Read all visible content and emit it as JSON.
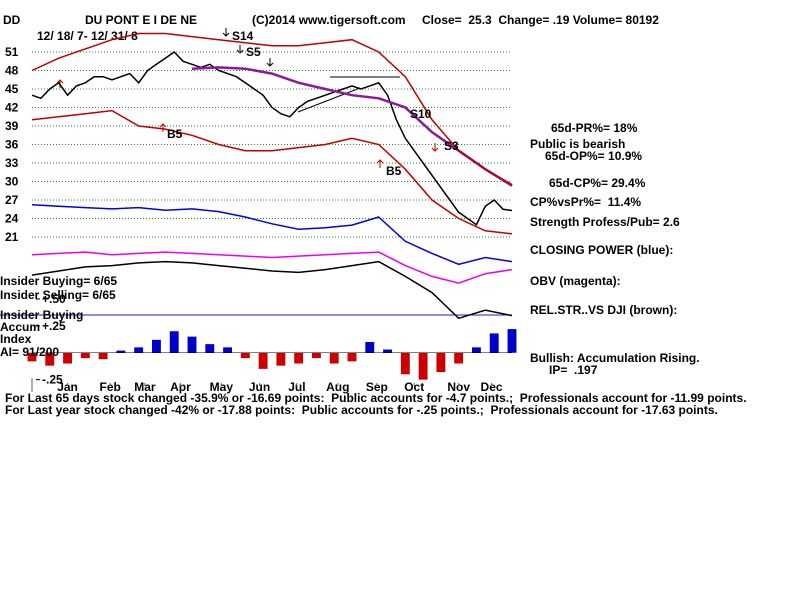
{
  "chart_data": [
    {
      "type": "line",
      "ticker": "DD",
      "title": "DU PONT E I DE NE",
      "subtitle": "12/ 18/ 7- 12/ 31/ 8",
      "copyright": "(C)2014 www.tigersoft.com",
      "quote": "Close=  25.3  Change= .19 Volume= 80192",
      "xlim": [
        0,
        54
      ],
      "ylim": [
        20,
        54
      ],
      "yticks": [
        21,
        24,
        27,
        30,
        33,
        36,
        39,
        42,
        45,
        48,
        51
      ],
      "xticks": [
        {
          "value": 4,
          "label": "Jan"
        },
        {
          "value": 8.8,
          "label": "Feb"
        },
        {
          "value": 12.7,
          "label": "Mar"
        },
        {
          "value": 16.7,
          "label": "Apr"
        },
        {
          "value": 21.3,
          "label": "May"
        },
        {
          "value": 25.6,
          "label": "Jun"
        },
        {
          "value": 29.8,
          "label": "Jul"
        },
        {
          "value": 34.4,
          "label": "Aug"
        },
        {
          "value": 38.8,
          "label": "Sep"
        },
        {
          "value": 43,
          "label": "Oct"
        },
        {
          "value": 48,
          "label": "Nov"
        },
        {
          "value": 51.7,
          "label": "Dec"
        }
      ],
      "grid": true,
      "series": [
        {
          "color": "#000000",
          "x": [
            0,
            1,
            2,
            3,
            4,
            5,
            6,
            7,
            8,
            9,
            10,
            11,
            12,
            13,
            14,
            15,
            16,
            17,
            18,
            19,
            20,
            21,
            22,
            23,
            24,
            25,
            26,
            27,
            28,
            29,
            30,
            31,
            32,
            33,
            34,
            35,
            36,
            37,
            38,
            39,
            40,
            41,
            42,
            43,
            44,
            45,
            46,
            47,
            48,
            49,
            50,
            51,
            52,
            53,
            54
          ],
          "values": [
            44,
            43.5,
            45,
            46,
            44,
            45.5,
            46,
            47,
            47,
            46.5,
            47,
            47.5,
            46,
            48,
            49,
            50,
            51,
            49.5,
            49,
            48.5,
            49,
            48,
            47.5,
            47,
            46,
            45,
            44,
            42,
            41,
            40.5,
            42,
            43,
            43.5,
            44,
            44.5,
            45,
            45.5,
            45,
            45.5,
            46,
            44,
            40,
            37,
            35,
            33,
            31,
            29,
            27,
            25,
            24,
            23,
            26,
            27,
            25.5,
            25.3
          ]
        },
        {
          "color": "#8b1a9b",
          "x": [
            0,
            3,
            6,
            9,
            12,
            15,
            18,
            21,
            24,
            27,
            30,
            33,
            36,
            39,
            42,
            45,
            48,
            51,
            54
          ],
          "values": [
            null,
            null,
            null,
            null,
            null,
            null,
            48.3,
            48.5,
            48.3,
            47.5,
            46,
            45,
            44,
            43.5,
            42,
            38,
            35,
            32,
            29.3
          ]
        },
        {
          "color": "#c00000",
          "x": [
            0,
            3,
            6,
            9,
            12,
            15,
            18,
            21,
            24,
            27,
            30,
            33,
            36,
            39,
            42,
            45,
            48,
            51,
            54
          ],
          "values": [
            48,
            50,
            51.5,
            53,
            54,
            54,
            53.5,
            53,
            52.5,
            52,
            52,
            52.5,
            53,
            51,
            47,
            40,
            35,
            32,
            29.5
          ]
        },
        {
          "color": "#c00000",
          "x": [
            0,
            3,
            6,
            9,
            12,
            15,
            18,
            21,
            24,
            27,
            30,
            33,
            36,
            39,
            42,
            45,
            48,
            51,
            54
          ],
          "values": [
            40,
            40.5,
            41,
            41.5,
            39,
            38.5,
            37.5,
            36,
            35,
            35,
            35.5,
            36,
            37,
            36,
            32,
            27,
            24,
            22,
            21.5
          ]
        }
      ],
      "annotations": [
        "S14",
        "S5",
        "S10",
        "S3",
        "B5",
        "B5"
      ]
    },
    {
      "type": "line",
      "xlim": [
        0,
        54
      ],
      "ylim": [
        0,
        100
      ],
      "series": [
        {
          "color": "#0000ee",
          "x": [
            0,
            3,
            6,
            9,
            12,
            15,
            18,
            21,
            24,
            27,
            30,
            33,
            36,
            39,
            42,
            45,
            48,
            51,
            54
          ],
          "values": [
            89,
            88,
            87,
            86,
            87,
            85,
            86,
            84,
            80,
            75,
            71,
            72,
            74,
            80,
            62,
            53,
            45,
            50,
            47
          ]
        },
        {
          "color": "#ee00ee",
          "x": [
            0,
            3,
            6,
            9,
            12,
            15,
            18,
            21,
            24,
            27,
            30,
            33,
            36,
            39,
            42,
            45,
            48,
            51,
            54
          ],
          "values": [
            52,
            53,
            54,
            52,
            53,
            54,
            53,
            52,
            51,
            50,
            51,
            52,
            53,
            54,
            44,
            36,
            31,
            38,
            41
          ]
        },
        {
          "color": "#000000",
          "x": [
            0,
            3,
            6,
            9,
            12,
            15,
            18,
            21,
            24,
            27,
            30,
            33,
            36,
            39,
            42,
            45,
            48,
            51,
            54
          ],
          "values": [
            37,
            40,
            43,
            44,
            46,
            47,
            46,
            44,
            42,
            40,
            39,
            41,
            44,
            47,
            36,
            24,
            5,
            11,
            7
          ]
        }
      ]
    },
    {
      "type": "bar",
      "xlim": [
        0,
        54
      ],
      "ylim": [
        -0.3,
        0.5
      ],
      "yticks": [
        {
          "value": 0.5,
          "label": "+.50"
        },
        {
          "value": 0.25,
          "label": "+.25"
        },
        {
          "value": -0.25,
          "label": "-.25"
        }
      ],
      "positive_color": "#0000cc",
      "negative_color": "#cc0000",
      "x": [
        0,
        2,
        4,
        6,
        8,
        10,
        12,
        14,
        16,
        18,
        20,
        22,
        24,
        26,
        28,
        30,
        32,
        34,
        36,
        38,
        40,
        42,
        44,
        46,
        48,
        50,
        52,
        54
      ],
      "values": [
        -0.08,
        -0.12,
        -0.1,
        -0.05,
        -0.06,
        0.02,
        0.05,
        0.12,
        0.2,
        0.15,
        0.08,
        0.05,
        -0.05,
        -0.15,
        -0.12,
        -0.1,
        -0.05,
        -0.1,
        -0.08,
        0.1,
        0.03,
        -0.2,
        -0.25,
        -0.18,
        -0.1,
        0.05,
        0.18,
        0.22
      ]
    }
  ],
  "left_notes": [
    "Insider Buying= 6/65",
    "Insider Selling= 6/65",
    "Insider Buying",
    "Accum",
    "Index",
    "AI= 91/200"
  ],
  "notes": [
    "65d-PR%= 18%",
    "Public is bearish",
    "65d-OP%= 10.9%",
    "65d-CP%= 29.4%",
    "CP%vsPr%=  11.4%",
    "Strength Profess/Pub= 2.6",
    "CLOSING POWER (blue):",
    "OBV (magenta):",
    "REL.STR..VS DJI (brown):",
    "Bullish: Accumulation Rising.",
    "IP=  .197"
  ],
  "footer": [
    "For Last 65 days stock changed -35.9% or -16.69 points:  Public accounts for -4.7 points.;  Professionals account for -11.99 points.",
    "For Last year stock changed -42% or -17.88 points:  Public accounts for -.25 points.;  Professionals account for -17.63 points."
  ]
}
